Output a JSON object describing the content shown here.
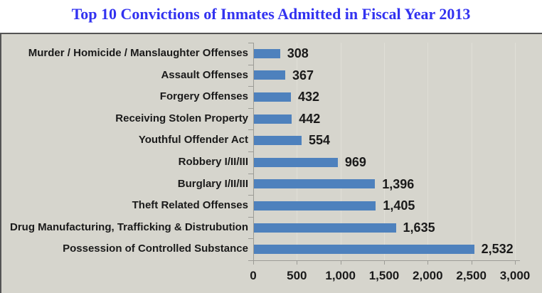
{
  "title": "Top 10 Convictions of Inmates Admitted in Fiscal Year 2013",
  "chart_data": {
    "type": "bar",
    "orientation": "horizontal",
    "title": "Top 10 Convictions of Inmates Admitted in Fiscal Year 2013",
    "categories": [
      "Murder / Homicide / Manslaughter Offenses",
      "Assault Offenses",
      "Forgery Offenses",
      "Receiving Stolen Property",
      "Youthful Offender Act",
      "Robbery I/II/III",
      "Burglary I/II/III",
      "Theft Related Offenses",
      "Drug Manufacturing, Trafficking & Distrubution",
      "Possession of Controlled Substance"
    ],
    "values": [
      308,
      367,
      432,
      442,
      554,
      969,
      1396,
      1405,
      1635,
      2532
    ],
    "value_labels": [
      "308",
      "367",
      "432",
      "442",
      "554",
      "969",
      "1,396",
      "1,405",
      "1,635",
      "2,532"
    ],
    "xlabel": "",
    "ylabel": "",
    "xlim": [
      0,
      3000
    ],
    "x_ticks": [
      0,
      500,
      1000,
      1500,
      2000,
      2500,
      3000
    ],
    "x_tick_labels": [
      "0",
      "500",
      "1,000",
      "1,500",
      "2,000",
      "2,500",
      "3,000"
    ],
    "grid": true,
    "legend": false,
    "colors": {
      "bar": "#4e81bd",
      "plot_bg": "#d6d5cd",
      "gridline": "#e0dfd7",
      "axis": "#9c9c96",
      "border": "#545454",
      "title": "#3232f0",
      "text": "#1a1a1a"
    }
  }
}
